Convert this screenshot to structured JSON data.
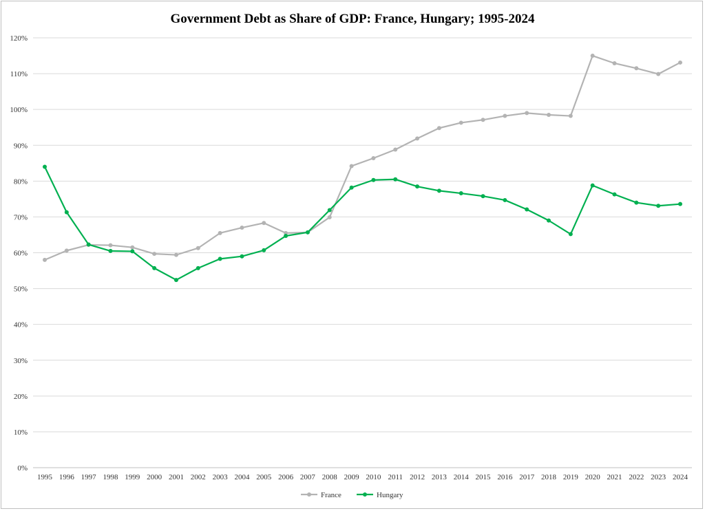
{
  "chart_data": {
    "type": "line",
    "title": "Government Debt as Share of GDP: France, Hungary; 1995-2024",
    "xlabel": "",
    "ylabel": "",
    "ylim": [
      0,
      120
    ],
    "yticks": [
      "0%",
      "10%",
      "20%",
      "30%",
      "40%",
      "50%",
      "60%",
      "70%",
      "80%",
      "90%",
      "100%",
      "110%",
      "120%"
    ],
    "grid": true,
    "legend_position": "bottom",
    "x": [
      "1995",
      "1996",
      "1997",
      "1998",
      "1999",
      "2000",
      "2001",
      "2002",
      "2003",
      "2004",
      "2005",
      "2006",
      "2007",
      "2008",
      "2009",
      "2010",
      "2011",
      "2012",
      "2013",
      "2014",
      "2015",
      "2016",
      "2017",
      "2018",
      "2019",
      "2020",
      "2021",
      "2022",
      "2023",
      "2024"
    ],
    "series": [
      {
        "name": "France",
        "color": "#b3b3b3",
        "values": [
          58.0,
          60.6,
          62.2,
          62.1,
          61.5,
          59.7,
          59.4,
          61.3,
          65.5,
          67.0,
          68.3,
          65.5,
          65.7,
          69.9,
          84.2,
          86.4,
          88.8,
          91.9,
          94.8,
          96.3,
          97.1,
          98.2,
          99.0,
          98.5,
          98.2,
          115.0,
          112.9,
          111.5,
          109.9,
          113.1
        ]
      },
      {
        "name": "Hungary",
        "color": "#00b050",
        "values": [
          84.0,
          71.3,
          62.3,
          60.5,
          60.4,
          55.7,
          52.4,
          55.7,
          58.3,
          59.0,
          60.7,
          64.7,
          65.7,
          71.9,
          78.2,
          80.3,
          80.5,
          78.5,
          77.3,
          76.6,
          75.8,
          74.7,
          72.1,
          69.0,
          65.2,
          78.8,
          76.3,
          74.0,
          73.1,
          73.6
        ]
      }
    ]
  }
}
